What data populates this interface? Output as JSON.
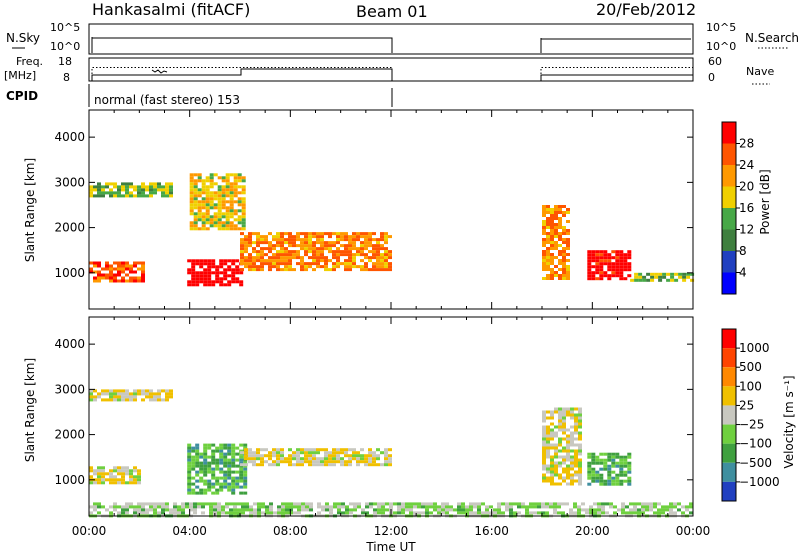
{
  "header": {
    "station": "Hankasalmi (fitACF)",
    "beam": "Beam 01",
    "date": "20/Feb/2012"
  },
  "panels": {
    "nsky_label": "N.Sky",
    "nsearch_label": "N.Search",
    "freq_label": "Freq.",
    "freq_unit": "[MHz]",
    "nave_label": "Nave",
    "cpid_label": "CPID",
    "cpid_text": "normal (fast stereo) 153",
    "noise_ticks_left": [
      "10^5",
      "10^0"
    ],
    "noise_ticks_right": [
      "10^5",
      "10^0"
    ],
    "freq_ticks": [
      "18",
      "8"
    ],
    "nave_ticks": [
      "60",
      "0"
    ]
  },
  "chart_data": [
    {
      "type": "heatmap",
      "name": "power",
      "ylabel": "Slant Range [km]",
      "xlabel": "Time UT",
      "x_ticks": [
        "00:00",
        "04:00",
        "08:00",
        "12:00",
        "16:00",
        "20:00",
        "00:00"
      ],
      "y_ticks": [
        1000,
        2000,
        3000,
        4000
      ],
      "ylim": [
        200,
        4600
      ],
      "xlim": [
        0,
        24
      ],
      "colorbar": {
        "label": "Power [dB]",
        "ticks": [
          4,
          8,
          12,
          16,
          20,
          24,
          28
        ],
        "colors": [
          "#0000ff",
          "#2040c0",
          "#3f7f3f",
          "#47a847",
          "#f0d000",
          "#ff9900",
          "#ff5500",
          "#ff0000"
        ]
      },
      "regions": [
        {
          "t0": 0.0,
          "t1": 3.3,
          "r0": 2700,
          "r1": 3000,
          "level": 3
        },
        {
          "t0": 0.0,
          "t1": 2.2,
          "r0": 850,
          "r1": 1250,
          "level": 6
        },
        {
          "t0": 3.9,
          "t1": 6.0,
          "r0": 750,
          "r1": 1300,
          "level": 8
        },
        {
          "t0": 4.0,
          "t1": 6.2,
          "r0": 2000,
          "r1": 3200,
          "level": 4
        },
        {
          "t0": 6.0,
          "t1": 12.0,
          "r0": 1100,
          "r1": 1900,
          "level": 5
        },
        {
          "t0": 18.0,
          "t1": 19.0,
          "r0": 900,
          "r1": 2500,
          "level": 5
        },
        {
          "t0": 19.8,
          "t1": 21.5,
          "r0": 900,
          "r1": 1500,
          "level": 7
        },
        {
          "t0": 21.5,
          "t1": 24.0,
          "r0": 850,
          "r1": 1000,
          "level": 3
        }
      ]
    },
    {
      "type": "heatmap",
      "name": "velocity",
      "ylabel": "Slant Range [km]",
      "xlabel": "Time UT",
      "x_ticks": [
        "00:00",
        "04:00",
        "08:00",
        "12:00",
        "16:00",
        "20:00",
        "00:00"
      ],
      "y_ticks": [
        1000,
        2000,
        3000,
        4000
      ],
      "ylim": [
        200,
        4600
      ],
      "xlim": [
        0,
        24
      ],
      "colorbar": {
        "label": "Velocity [m s⁻¹]",
        "ticks": [
          "1000",
          "500",
          "100",
          "25",
          "−25",
          "−100",
          "−500",
          "−1000"
        ],
        "colors": [
          "#2040c0",
          "#3f8f9f",
          "#3fa03f",
          "#6fd03f",
          "#c8c8c0",
          "#f0c000",
          "#ff8800",
          "#ff4400",
          "#ff0000"
        ]
      },
      "regions": [
        {
          "t0": 0.0,
          "t1": 3.3,
          "r0": 2800,
          "r1": 3000,
          "level": 4
        },
        {
          "t0": 0.0,
          "t1": 2.0,
          "r0": 950,
          "r1": 1300,
          "level": 4
        },
        {
          "t0": 3.9,
          "t1": 6.2,
          "r0": 700,
          "r1": 1800,
          "level": 2
        },
        {
          "t0": 6.0,
          "t1": 12.0,
          "r0": 1350,
          "r1": 1700,
          "level": 4
        },
        {
          "t0": 18.0,
          "t1": 19.5,
          "r0": 900,
          "r1": 2600,
          "level": 4
        },
        {
          "t0": 19.8,
          "t1": 21.5,
          "r0": 900,
          "r1": 1600,
          "level": 2
        },
        {
          "t0": 0.0,
          "t1": 24.0,
          "r0": 200,
          "r1": 500,
          "level": 3
        }
      ]
    }
  ]
}
